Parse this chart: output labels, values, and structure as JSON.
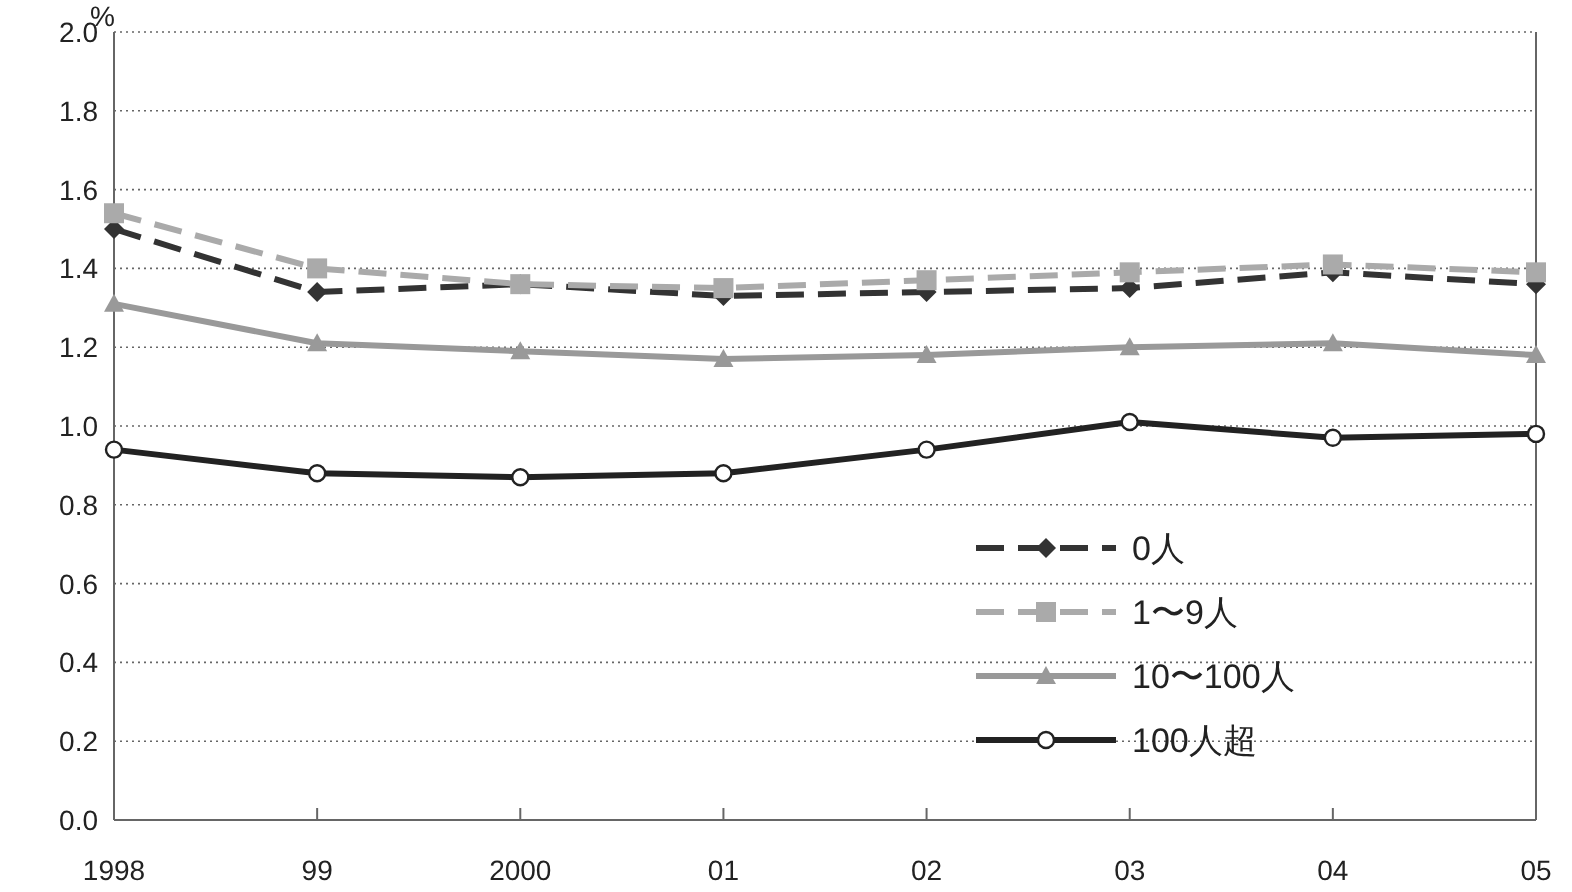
{
  "chart_data": {
    "type": "line",
    "ylabel": "%",
    "categories": [
      "1998",
      "99",
      "2000",
      "01",
      "02",
      "03",
      "04",
      "05"
    ],
    "ylim": [
      0,
      2
    ],
    "yticks": [
      {
        "value": 0,
        "label": "0.0"
      },
      {
        "value": 0.2,
        "label": "0.2"
      },
      {
        "value": 0.4,
        "label": "0.4"
      },
      {
        "value": 0.6,
        "label": "0.6"
      },
      {
        "value": 0.8,
        "label": "0.8"
      },
      {
        "value": 1,
        "label": "1.0"
      },
      {
        "value": 1.2,
        "label": "1.2"
      },
      {
        "value": 1.4,
        "label": "1.4"
      },
      {
        "value": 1.6,
        "label": "1.6"
      },
      {
        "value": 1.8,
        "label": "1.8"
      },
      {
        "value": 2,
        "label": "2.0"
      }
    ],
    "grid": "y",
    "legend": "bottom right",
    "series": [
      {
        "name": "0人",
        "color": "#333333",
        "marker": "diamond",
        "line_style": "dashed",
        "values": [
          1.5,
          1.34,
          1.36,
          1.33,
          1.34,
          1.35,
          1.39,
          1.36
        ]
      },
      {
        "name": "1〜9人",
        "color": "#aaaaaa",
        "marker": "square",
        "line_style": "dashed",
        "values": [
          1.54,
          1.4,
          1.36,
          1.35,
          1.37,
          1.39,
          1.41,
          1.39
        ]
      },
      {
        "name": "10〜100人",
        "color": "#999999",
        "marker": "triangle",
        "line_style": "solid",
        "values": [
          1.31,
          1.21,
          1.19,
          1.17,
          1.18,
          1.2,
          1.21,
          1.18
        ]
      },
      {
        "name": "100人超",
        "color": "#222222",
        "marker": "circle",
        "line_style": "solid",
        "values": [
          0.94,
          0.88,
          0.87,
          0.88,
          0.94,
          1.01,
          0.97,
          0.98
        ]
      }
    ]
  }
}
